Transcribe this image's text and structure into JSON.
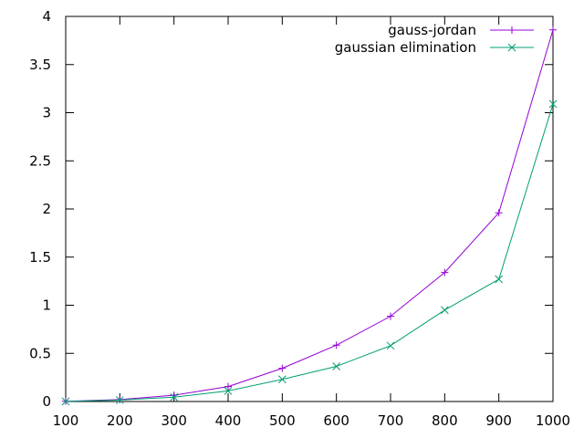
{
  "chart_data": {
    "type": "line",
    "title": "",
    "xlabel": "",
    "ylabel": "",
    "grid": false,
    "legend_position": "top-right",
    "xlim": [
      100,
      1000
    ],
    "ylim": [
      0,
      4
    ],
    "x_ticks": [
      100,
      200,
      300,
      400,
      500,
      600,
      700,
      800,
      900,
      1000
    ],
    "x_tick_labels": [
      "100",
      "200",
      "300",
      "400",
      "500",
      "600",
      "700",
      "800",
      "900",
      "1000"
    ],
    "y_ticks": [
      0,
      0.5,
      1,
      1.5,
      2,
      2.5,
      3,
      3.5,
      4
    ],
    "y_tick_labels": [
      "0",
      "0.5",
      "1",
      "1.5",
      "2",
      "2.5",
      "3",
      "3.5",
      "4"
    ],
    "x": [
      100,
      200,
      300,
      400,
      500,
      600,
      700,
      800,
      900,
      1000
    ],
    "series": [
      {
        "name": "gauss-jordan",
        "color": "#9400d3",
        "marker": "plus",
        "values": [
          0.002,
          0.02,
          0.065,
          0.155,
          0.345,
          0.585,
          0.885,
          1.34,
          1.96,
          3.86
        ]
      },
      {
        "name": "gaussian elimination",
        "color": "#009e73",
        "marker": "cross",
        "values": [
          0.001,
          0.015,
          0.045,
          0.11,
          0.23,
          0.365,
          0.58,
          0.95,
          1.27,
          3.09
        ]
      }
    ]
  }
}
